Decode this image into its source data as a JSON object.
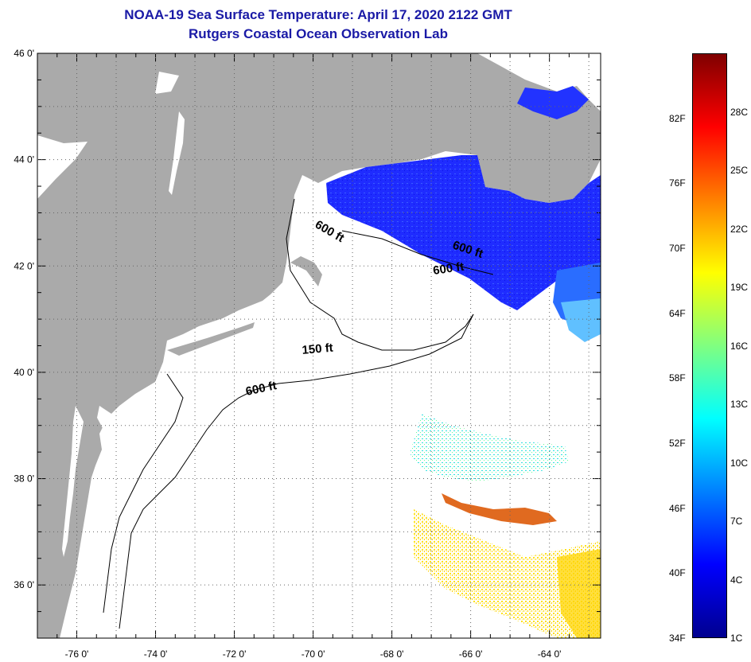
{
  "title": {
    "line1": "NOAA-19 Sea Surface Temperature:  April 17, 2020 2122 GMT",
    "line2": "Rutgers Coastal Ocean Observation Lab"
  },
  "map": {
    "lon_range": [
      -77.0,
      -62.7
    ],
    "lat_range": [
      35.0,
      46.0
    ],
    "lon_labels": [
      {
        "lon": -76,
        "text": "-76 0'"
      },
      {
        "lon": -74,
        "text": "-74 0'"
      },
      {
        "lon": -72,
        "text": "-72 0'"
      },
      {
        "lon": -70,
        "text": "-70 0'"
      },
      {
        "lon": -68,
        "text": "-68 0'"
      },
      {
        "lon": -66,
        "text": "-66 0'"
      },
      {
        "lon": -64,
        "text": "-64 0'"
      }
    ],
    "lat_labels": [
      {
        "lat": 46,
        "text": "46 0'"
      },
      {
        "lat": 44,
        "text": "44 0'"
      },
      {
        "lat": 42,
        "text": "42 0'"
      },
      {
        "lat": 40,
        "text": "40 0'"
      },
      {
        "lat": 38,
        "text": "38 0'"
      },
      {
        "lat": 36,
        "text": "36 0'"
      }
    ],
    "contour_labels": [
      "600 ft",
      "600 ft",
      "600 ft",
      "150 ft",
      "600 ft"
    ],
    "colors": {
      "land": "#aaaaaa",
      "ocean": "#ffffff",
      "grid": "#666666",
      "title": "#1a1aa6"
    }
  },
  "colorbar": {
    "fahrenheit": [
      "82F",
      "76F",
      "70F",
      "64F",
      "58F",
      "52F",
      "46F",
      "40F",
      "34F"
    ],
    "celsius": [
      "28C",
      "25C",
      "22C",
      "19C",
      "16C",
      "13C",
      "10C",
      "7C",
      "4C",
      "1C"
    ],
    "stops": [
      "#7f0000",
      "#ff0000",
      "#ff8000",
      "#ffff00",
      "#80ff80",
      "#00ffff",
      "#0080ff",
      "#0000ff",
      "#00008f"
    ]
  }
}
